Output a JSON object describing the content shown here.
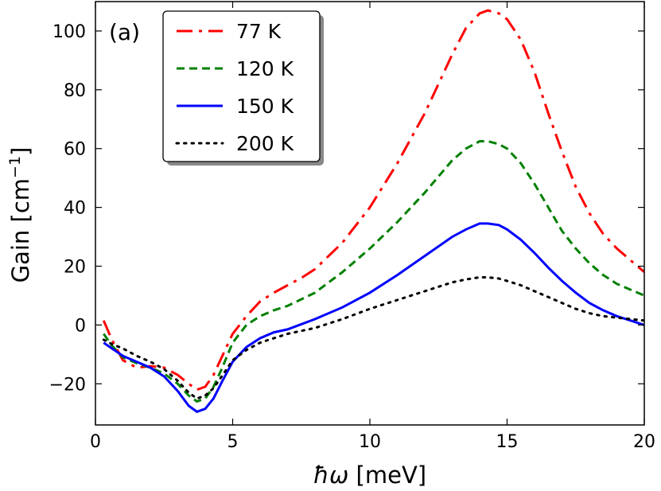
{
  "chart_data": {
    "type": "line",
    "panel_label": "(a)",
    "xlabel_italic": "ħω",
    "xlabel_unit": " [meV]",
    "ylabel_text": "Gain [cm",
    "ylabel_sup": "−1",
    "ylabel_close": "]",
    "xlim": [
      0,
      20
    ],
    "ylim": [
      -34,
      110
    ],
    "xticks": [
      0,
      5,
      10,
      15,
      20
    ],
    "xtick_labels": [
      "0",
      "5",
      "10",
      "15",
      "20"
    ],
    "yticks": [
      -20,
      0,
      20,
      40,
      60,
      80,
      100
    ],
    "ytick_labels": [
      "−20",
      "0",
      "20",
      "40",
      "60",
      "80",
      "100"
    ],
    "legend_position": "upper-left",
    "series": [
      {
        "name": "77 K",
        "color": "#ff0000",
        "style": "dashdot",
        "points": [
          [
            0.3,
            1.5
          ],
          [
            0.6,
            -5
          ],
          [
            1.0,
            -12
          ],
          [
            1.5,
            -14.5
          ],
          [
            2.0,
            -14
          ],
          [
            2.5,
            -14.5
          ],
          [
            3.0,
            -17
          ],
          [
            3.4,
            -20
          ],
          [
            3.7,
            -22
          ],
          [
            4.0,
            -21
          ],
          [
            4.3,
            -17
          ],
          [
            4.6,
            -11
          ],
          [
            5.0,
            -3
          ],
          [
            5.5,
            3
          ],
          [
            6.0,
            8
          ],
          [
            6.5,
            11
          ],
          [
            7.0,
            13.5
          ],
          [
            7.5,
            16
          ],
          [
            8.0,
            19
          ],
          [
            9.0,
            28
          ],
          [
            10.0,
            40
          ],
          [
            11.0,
            55
          ],
          [
            12.0,
            72
          ],
          [
            13.0,
            92
          ],
          [
            13.5,
            101
          ],
          [
            14.0,
            106
          ],
          [
            14.3,
            107
          ],
          [
            14.7,
            106
          ],
          [
            15.0,
            104
          ],
          [
            15.5,
            97
          ],
          [
            16.0,
            86
          ],
          [
            16.5,
            72
          ],
          [
            17.0,
            59
          ],
          [
            17.5,
            47
          ],
          [
            18.0,
            38
          ],
          [
            18.5,
            31
          ],
          [
            19.0,
            26
          ],
          [
            19.5,
            22
          ],
          [
            20.0,
            18
          ]
        ]
      },
      {
        "name": "120 K",
        "color": "#008000",
        "style": "dashed",
        "points": [
          [
            0.3,
            -3
          ],
          [
            0.6,
            -7
          ],
          [
            1.0,
            -11
          ],
          [
            1.5,
            -13
          ],
          [
            2.0,
            -14.5
          ],
          [
            2.5,
            -16.5
          ],
          [
            3.0,
            -20
          ],
          [
            3.4,
            -24
          ],
          [
            3.7,
            -26
          ],
          [
            4.0,
            -25
          ],
          [
            4.3,
            -21
          ],
          [
            4.6,
            -15
          ],
          [
            5.0,
            -6
          ],
          [
            5.5,
            0
          ],
          [
            6.0,
            3
          ],
          [
            6.5,
            5
          ],
          [
            7.0,
            6.5
          ],
          [
            8.0,
            11
          ],
          [
            9.0,
            18
          ],
          [
            10.0,
            26
          ],
          [
            11.0,
            35
          ],
          [
            12.0,
            45
          ],
          [
            13.0,
            56
          ],
          [
            13.5,
            60
          ],
          [
            14.0,
            62.5
          ],
          [
            14.3,
            62.5
          ],
          [
            14.7,
            61.5
          ],
          [
            15.0,
            60
          ],
          [
            15.5,
            55
          ],
          [
            16.0,
            48
          ],
          [
            16.5,
            40
          ],
          [
            17.0,
            32
          ],
          [
            17.5,
            26
          ],
          [
            18.0,
            21
          ],
          [
            18.5,
            17
          ],
          [
            19.0,
            14
          ],
          [
            19.5,
            12
          ],
          [
            20.0,
            10
          ]
        ]
      },
      {
        "name": "150 K",
        "color": "#0000ff",
        "style": "solid",
        "points": [
          [
            0.3,
            -6
          ],
          [
            0.6,
            -8
          ],
          [
            1.0,
            -10.5
          ],
          [
            1.5,
            -12.5
          ],
          [
            2.0,
            -14.5
          ],
          [
            2.5,
            -17.5
          ],
          [
            3.0,
            -22.5
          ],
          [
            3.4,
            -27.5
          ],
          [
            3.7,
            -29.5
          ],
          [
            4.0,
            -28.5
          ],
          [
            4.3,
            -25
          ],
          [
            4.6,
            -19.5
          ],
          [
            5.0,
            -12.5
          ],
          [
            5.5,
            -7.5
          ],
          [
            6.0,
            -4.5
          ],
          [
            6.5,
            -2.5
          ],
          [
            7.0,
            -1.5
          ],
          [
            8.0,
            2
          ],
          [
            9.0,
            6
          ],
          [
            10.0,
            11
          ],
          [
            11.0,
            17
          ],
          [
            12.0,
            23.5
          ],
          [
            13.0,
            30
          ],
          [
            13.5,
            32.5
          ],
          [
            14.0,
            34.5
          ],
          [
            14.3,
            34.5
          ],
          [
            14.7,
            34
          ],
          [
            15.0,
            32.5
          ],
          [
            15.5,
            29
          ],
          [
            16.0,
            24.5
          ],
          [
            16.5,
            19.5
          ],
          [
            17.0,
            15
          ],
          [
            17.5,
            11
          ],
          [
            18.0,
            7.5
          ],
          [
            18.5,
            5
          ],
          [
            19.0,
            3
          ],
          [
            19.5,
            1.5
          ],
          [
            20.0,
            0
          ]
        ]
      },
      {
        "name": "200 K",
        "color": "#000000",
        "style": "dotted",
        "points": [
          [
            0.3,
            -5
          ],
          [
            0.6,
            -6.5
          ],
          [
            1.0,
            -8
          ],
          [
            1.5,
            -10.5
          ],
          [
            2.0,
            -12.5
          ],
          [
            2.5,
            -15
          ],
          [
            3.0,
            -19
          ],
          [
            3.4,
            -23
          ],
          [
            3.7,
            -25
          ],
          [
            4.0,
            -24
          ],
          [
            4.3,
            -21.5
          ],
          [
            4.6,
            -17.5
          ],
          [
            5.0,
            -12
          ],
          [
            5.5,
            -8.5
          ],
          [
            6.0,
            -6
          ],
          [
            6.5,
            -4.5
          ],
          [
            7.0,
            -3
          ],
          [
            8.0,
            -1
          ],
          [
            9.0,
            2
          ],
          [
            10.0,
            5.5
          ],
          [
            11.0,
            8.5
          ],
          [
            12.0,
            11.5
          ],
          [
            13.0,
            14.5
          ],
          [
            13.5,
            15.5
          ],
          [
            14.0,
            16.2
          ],
          [
            14.3,
            16.2
          ],
          [
            14.7,
            15.8
          ],
          [
            15.0,
            15
          ],
          [
            15.5,
            13.5
          ],
          [
            16.0,
            11.5
          ],
          [
            16.5,
            9.5
          ],
          [
            17.0,
            7.5
          ],
          [
            17.5,
            5.5
          ],
          [
            18.0,
            4
          ],
          [
            18.5,
            3
          ],
          [
            19.0,
            2.5
          ],
          [
            19.5,
            2
          ],
          [
            20.0,
            1.5
          ]
        ]
      }
    ]
  }
}
